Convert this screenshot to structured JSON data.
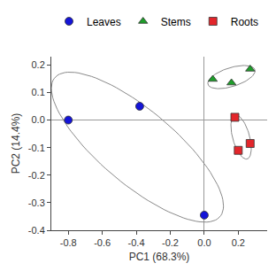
{
  "chart_data": {
    "type": "scatter",
    "xlabel": "PC1 (68.3%)",
    "ylabel": "PC2 (14.4%)",
    "xlim": [
      -0.9,
      0.37
    ],
    "ylim": [
      -0.4,
      0.23
    ],
    "xticks": [
      -0.8,
      -0.6,
      -0.4,
      -0.2,
      {
        "value": 0,
        "label": "0.0"
      },
      0.2
    ],
    "yticks": [
      -0.4,
      -0.3,
      -0.2,
      -0.1,
      {
        "value": 0,
        "label": "0.0"
      },
      0.1,
      0.2
    ],
    "legend": "top",
    "grid": false,
    "series": [
      {
        "name": "Leaves",
        "color": "#1414d8",
        "marker": "circle",
        "x": [
          -0.8,
          -0.38,
          0.0
        ],
        "y": [
          0.0,
          0.05,
          -0.345
        ]
      },
      {
        "name": "Stems",
        "color": "#1e9e2a",
        "marker": "triangle-up",
        "x": [
          0.05,
          0.16,
          0.27
        ],
        "y": [
          0.148,
          0.135,
          0.185
        ]
      },
      {
        "name": "Roots",
        "color": "#e3262b",
        "marker": "square",
        "x": [
          0.18,
          0.2,
          0.27
        ],
        "y": [
          0.01,
          -0.11,
          -0.085
        ]
      }
    ]
  }
}
